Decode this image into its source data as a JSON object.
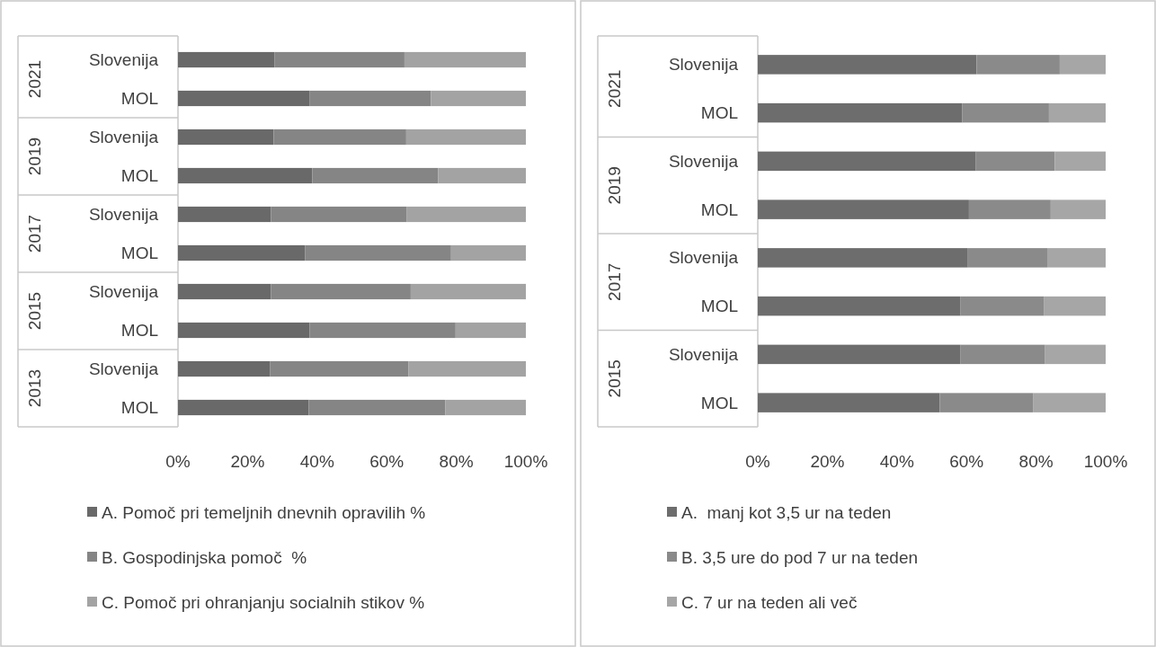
{
  "chart_data": [
    {
      "type": "bar",
      "orientation": "horizontal",
      "stacked": true,
      "categories": [
        "Slovenija",
        "MOL",
        "Slovenija",
        "MOL",
        "Slovenija",
        "MOL",
        "Slovenija",
        "MOL",
        "Slovenija",
        "MOL"
      ],
      "annotations": [
        "2021",
        "2019",
        "2017",
        "2015",
        "2013"
      ],
      "series": [
        {
          "name": "A. Pomoč pri temeljnih dnevnih opravilih %",
          "color": "#696969",
          "values": [
            27.7,
            37.9,
            27.5,
            38.6,
            26.7,
            36.5,
            26.7,
            37.8,
            26.5,
            37.6
          ]
        },
        {
          "name": "B. Gospodinjska pomoč  %",
          "color": "#858585",
          "values": [
            37.4,
            34.8,
            38.1,
            36.2,
            39.1,
            42.0,
            40.2,
            42.0,
            39.7,
            39.2
          ]
        },
        {
          "name": "C. Pomoč pri ohranjanju socialnih stikov %",
          "color": "#a3a3a3",
          "values": [
            34.9,
            27.3,
            34.4,
            25.2,
            34.2,
            21.5,
            33.1,
            20.2,
            33.8,
            23.2
          ]
        }
      ],
      "xlim": [
        0,
        100
      ],
      "xticks": [
        {
          "value": 0,
          "label": "0%"
        },
        {
          "value": 20,
          "label": "20%"
        },
        {
          "value": 40,
          "label": "40%"
        },
        {
          "value": 60,
          "label": "60%"
        },
        {
          "value": 80,
          "label": "80%"
        },
        {
          "value": 100,
          "label": "100%"
        }
      ],
      "legend": "bottom"
    },
    {
      "type": "bar",
      "orientation": "horizontal",
      "stacked": true,
      "categories": [
        "Slovenija",
        "MOL",
        "Slovenija",
        "MOL",
        "Slovenija",
        "MOL",
        "Slovenija",
        "MOL"
      ],
      "annotations": [
        "2021",
        "2019",
        "2017",
        "2015"
      ],
      "series": [
        {
          "name": "A.  manj kot 3,5 ur na teden",
          "color": "#6d6d6d",
          "values": [
            62.9,
            58.8,
            62.7,
            60.7,
            60.4,
            58.3,
            58.3,
            52.3
          ]
        },
        {
          "name": "B. 3,5 ure do pod 7 ur na teden",
          "color": "#8a8a8a",
          "values": [
            23.9,
            24.9,
            22.7,
            23.5,
            22.8,
            23.9,
            24.3,
            26.8
          ]
        },
        {
          "name": "C. 7 ur na teden ali več",
          "color": "#a6a6a6",
          "values": [
            13.2,
            16.3,
            14.6,
            15.8,
            16.8,
            17.8,
            17.4,
            20.9
          ]
        }
      ],
      "xlim": [
        0,
        100
      ],
      "xticks": [
        {
          "value": 0,
          "label": "0%"
        },
        {
          "value": 20,
          "label": "20%"
        },
        {
          "value": 40,
          "label": "40%"
        },
        {
          "value": 60,
          "label": "60%"
        },
        {
          "value": 80,
          "label": "80%"
        },
        {
          "value": 100,
          "label": "100%"
        }
      ],
      "legend": "bottom"
    }
  ]
}
